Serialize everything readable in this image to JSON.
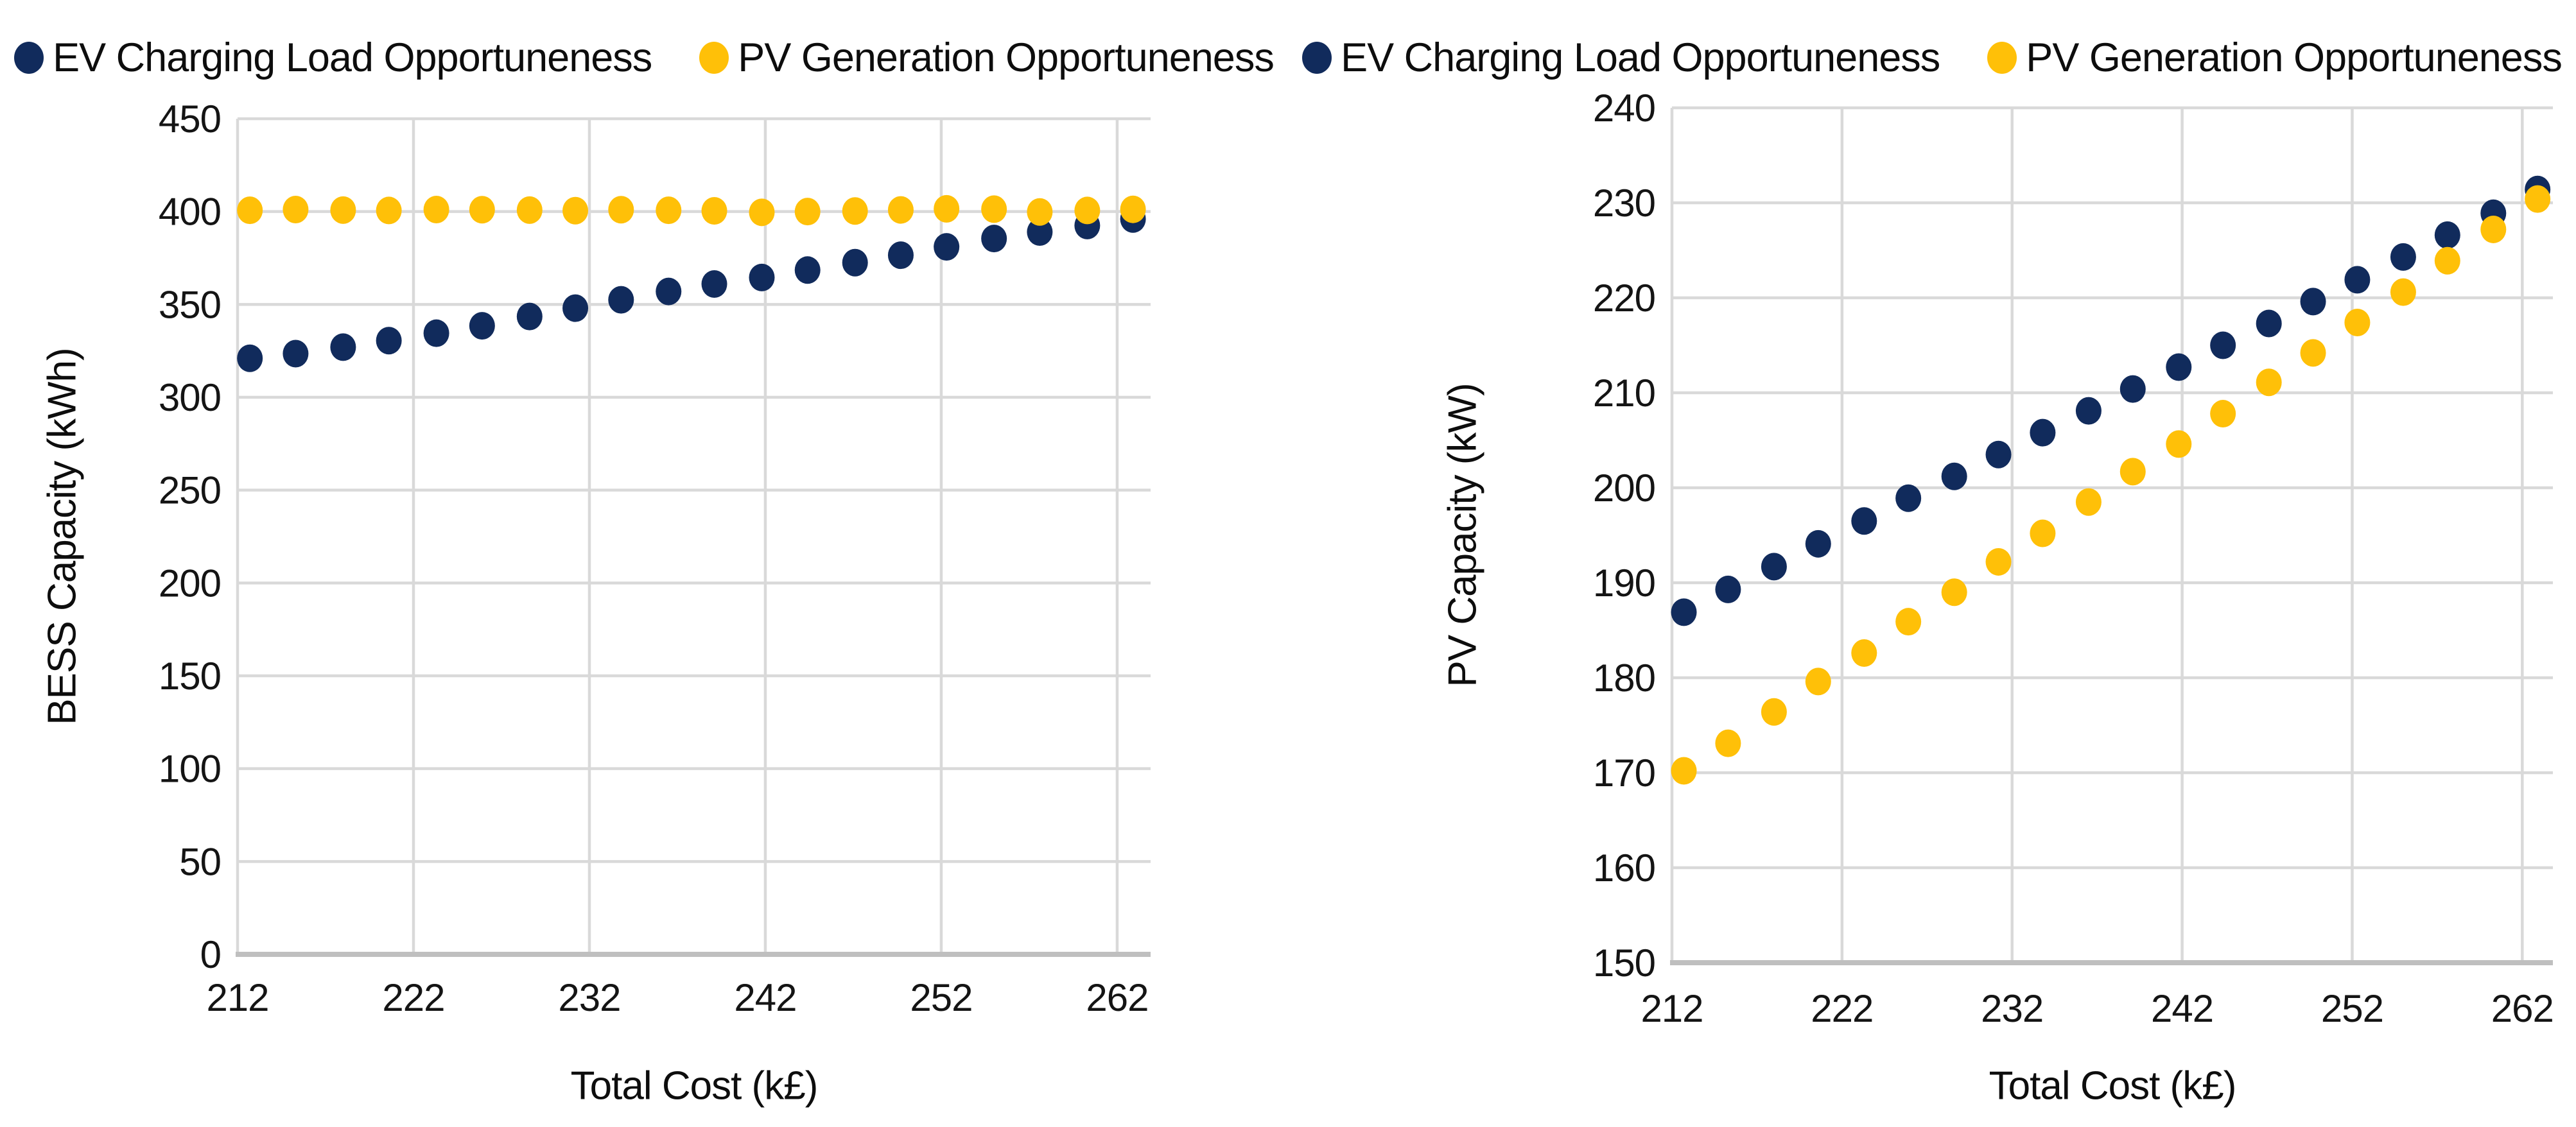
{
  "page": {
    "background": "#ffffff"
  },
  "colors": {
    "ev_navy": "#112b5c",
    "pv_gold": "#ffc008",
    "gridline": "#d9d9d9",
    "axis_line": "#bfbfbf",
    "text": "#141414"
  },
  "chart_data": [
    {
      "type": "scatter",
      "title": "",
      "xlabel": "Total Cost (k£)",
      "ylabel": "BESS Capacity (kWh)",
      "xlim": [
        212,
        263.9
      ],
      "ylim": [
        0,
        450
      ],
      "xticks": [
        212,
        222,
        232,
        242,
        252,
        262
      ],
      "yticks": [
        0,
        50,
        100,
        150,
        200,
        250,
        300,
        350,
        400,
        450
      ],
      "grid": true,
      "legend_position": "top",
      "x": [
        212.7,
        215.3,
        218.0,
        220.6,
        223.3,
        225.9,
        228.6,
        231.2,
        233.8,
        236.5,
        239.1,
        241.8,
        244.4,
        247.1,
        249.7,
        252.3,
        255.0,
        257.6,
        260.3,
        262.9
      ],
      "series": [
        {
          "name": "EV Charging Load Opportuneness",
          "color": "#112b5c",
          "values": [
            321,
            323.5,
            327,
            330.5,
            334.5,
            338.5,
            343.5,
            348,
            352.5,
            357,
            361,
            364.5,
            368.5,
            372.5,
            376.5,
            381,
            385.5,
            389,
            392.5,
            396
          ]
        },
        {
          "name": "PV Generation Opportuneness",
          "color": "#ffc008",
          "values": [
            400.7,
            401.1,
            400.8,
            400.6,
            401.1,
            401.0,
            400.8,
            400.5,
            401.0,
            400.7,
            400.4,
            399.6,
            400.0,
            400.3,
            400.9,
            401.5,
            401.3,
            399.8,
            400.6,
            401.2
          ]
        }
      ]
    },
    {
      "type": "scatter",
      "title": "",
      "xlabel": "Total Cost (k£)",
      "ylabel": "PV Capacity (kW)",
      "xlim": [
        212,
        263.8
      ],
      "ylim": [
        150,
        240
      ],
      "xticks": [
        212,
        222,
        232,
        242,
        252,
        262
      ],
      "yticks": [
        150,
        160,
        170,
        180,
        190,
        200,
        210,
        220,
        230,
        240
      ],
      "grid": true,
      "legend_position": "top",
      "x": [
        212.7,
        215.3,
        218.0,
        220.6,
        223.3,
        225.9,
        228.6,
        231.2,
        233.8,
        236.5,
        239.1,
        241.8,
        244.4,
        247.1,
        249.7,
        252.3,
        255.0,
        257.6,
        260.3,
        262.9
      ],
      "series": [
        {
          "name": "EV Charging Load Opportuneness",
          "color": "#112b5c",
          "values": [
            186.9,
            189.3,
            191.7,
            194.1,
            196.5,
            198.9,
            201.2,
            203.5,
            205.8,
            208.1,
            210.4,
            212.7,
            215.0,
            217.3,
            219.6,
            221.9,
            224.3,
            226.6,
            228.9,
            231.4
          ]
        },
        {
          "name": "PV Generation Opportuneness",
          "color": "#ffc008",
          "values": [
            170.2,
            173.1,
            176.4,
            179.6,
            182.6,
            185.9,
            189.0,
            192.2,
            195.2,
            198.5,
            201.7,
            204.6,
            207.8,
            211.1,
            214.2,
            217.4,
            220.6,
            223.9,
            227.2,
            230.4
          ]
        }
      ]
    }
  ]
}
